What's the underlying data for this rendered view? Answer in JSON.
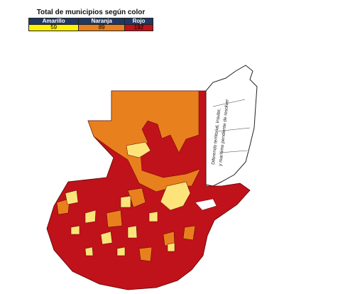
{
  "legend": {
    "title": "Total de municipios según color",
    "items": [
      {
        "label": "Amarillo",
        "count": "59"
      },
      {
        "label": "Naranja",
        "count": "89"
      },
      {
        "label": "Rojo",
        "count": "192"
      }
    ]
  },
  "annotation": {
    "line1": "Diferendo territorial, insular,",
    "line2": "y marítimo pendiente de resolver"
  }
}
